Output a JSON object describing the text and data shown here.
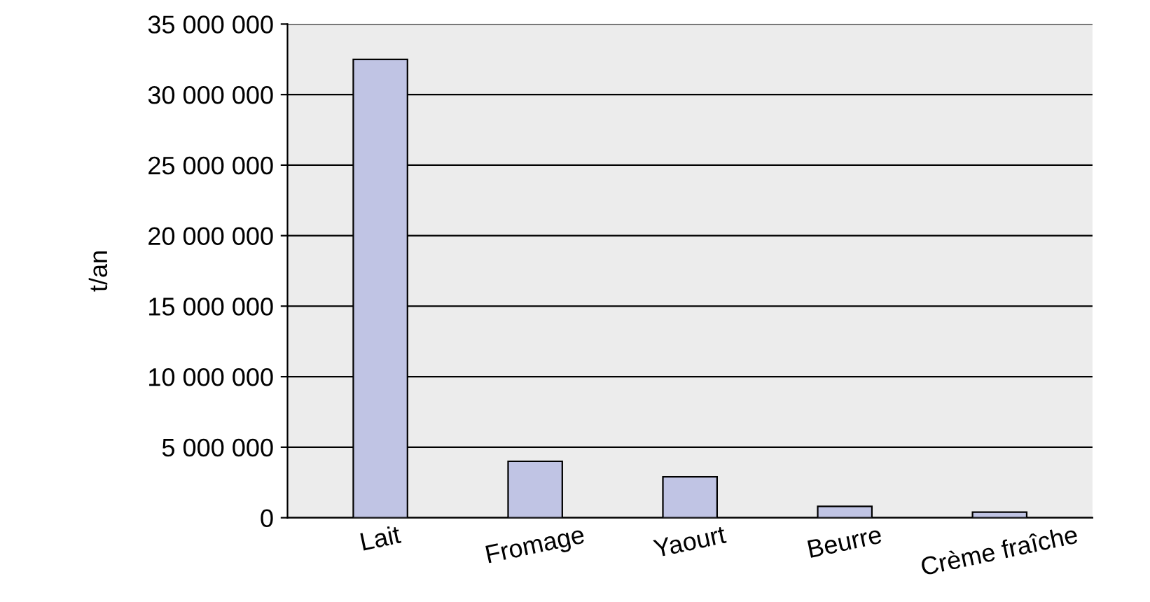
{
  "chart_data": {
    "type": "bar",
    "ylabel": "t/an",
    "categories": [
      "Lait",
      "Fromage",
      "Yaourt",
      "Beurre",
      "Crème fraîche"
    ],
    "values": [
      32500000,
      4000000,
      2900000,
      800000,
      400000
    ],
    "color": "#c0c4e4",
    "ylim": [
      0,
      35000000
    ],
    "yticks": [
      {
        "value": 0,
        "label": "0"
      },
      {
        "value": 5000000,
        "label": "5 000 000"
      },
      {
        "value": 10000000,
        "label": "10 000 000"
      },
      {
        "value": 15000000,
        "label": "15 000 000"
      },
      {
        "value": 20000000,
        "label": "20 000 000"
      },
      {
        "value": 25000000,
        "label": "25 000 000"
      },
      {
        "value": 30000000,
        "label": "30 000 000"
      },
      {
        "value": 35000000,
        "label": "35 000 000"
      }
    ],
    "grid": "y"
  }
}
